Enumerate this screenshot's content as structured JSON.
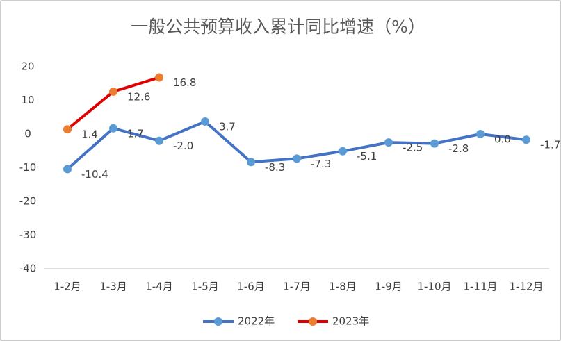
{
  "chart_data": {
    "type": "line",
    "title": "一般公共预算收入累计同比增速（%）",
    "categories": [
      "1-2月",
      "1-3月",
      "1-4月",
      "1-5月",
      "1-6月",
      "1-7月",
      "1-8月",
      "1-9月",
      "1-10月",
      "1-11月",
      "1-12月"
    ],
    "series": [
      {
        "name": "2022年",
        "color": "#4472c4",
        "marker_color": "#5b9bd5",
        "values": [
          -10.4,
          1.7,
          -2.0,
          3.7,
          -8.3,
          -7.3,
          -5.1,
          -2.5,
          -2.8,
          0.0,
          -1.7
        ],
        "value_labels": [
          "-10.4",
          "1.7",
          "-2.0",
          "3.7",
          "-8.3",
          "-7.3",
          "-5.1",
          "-2.5",
          "-2.8",
          "0.0",
          "-1.7"
        ]
      },
      {
        "name": "2023年",
        "color": "#e00000",
        "marker_color": "#ed7d31",
        "values": [
          1.4,
          12.6,
          16.8,
          null,
          null,
          null,
          null,
          null,
          null,
          null,
          null
        ],
        "value_labels": [
          "1.4",
          "12.6",
          "16.8",
          null,
          null,
          null,
          null,
          null,
          null,
          null,
          null
        ]
      }
    ],
    "ylim": [
      -40,
      20
    ],
    "yticks": [
      -40,
      -30,
      -20,
      -10,
      0,
      10,
      20
    ],
    "grid": false,
    "legend": "bottom"
  }
}
